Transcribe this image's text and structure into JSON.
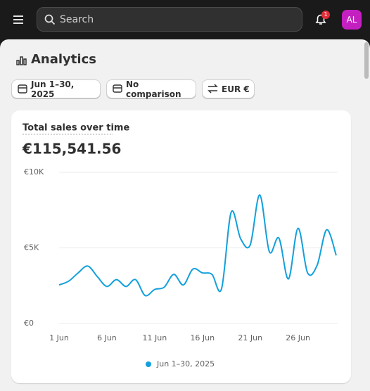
{
  "top_bar": {
    "search_placeholder": "Search",
    "notification_count": 1,
    "avatar": "AL"
  },
  "page": {
    "title": "Analytics",
    "filters": [
      "Jun 1–30, 2025",
      "No comparison",
      "EUR €"
    ]
  },
  "chart_data": {
    "type": "line",
    "title": "Total sales over time",
    "subtitle": "€115,541.56",
    "x": [
      1,
      2,
      3,
      4,
      5,
      6,
      7,
      8,
      9,
      10,
      11,
      12,
      13,
      14,
      15,
      16,
      17,
      18,
      19,
      20,
      21,
      22,
      23,
      24,
      25,
      26,
      27,
      28,
      29,
      30
    ],
    "series": [
      {
        "name": "Jun 1–30, 2025",
        "color": "#13a0dc",
        "values": [
          2550,
          2800,
          3350,
          3800,
          3100,
          2450,
          2900,
          2450,
          2900,
          1850,
          2250,
          2400,
          3250,
          2550,
          3600,
          3350,
          3250,
          2300,
          7350,
          5600,
          5200,
          8500,
          4750,
          5650,
          2950,
          6300,
          3350,
          3850,
          6200,
          4500
        ]
      }
    ],
    "xlim": [
      1,
      30
    ],
    "xticks": [
      {
        "value": 1,
        "label": "1 Jun"
      },
      {
        "value": 6,
        "label": "6 Jun"
      },
      {
        "value": 11,
        "label": "11 Jun"
      },
      {
        "value": 16,
        "label": "16 Jun"
      },
      {
        "value": 21,
        "label": "21 Jun"
      },
      {
        "value": 26,
        "label": "26 Jun"
      }
    ],
    "ylim": [
      0,
      10000
    ],
    "yticks": [
      {
        "value": 0,
        "label": "€0"
      },
      {
        "value": 5000,
        "label": "€5K"
      },
      {
        "value": 10000,
        "label": "€10K"
      }
    ],
    "grid": true
  }
}
